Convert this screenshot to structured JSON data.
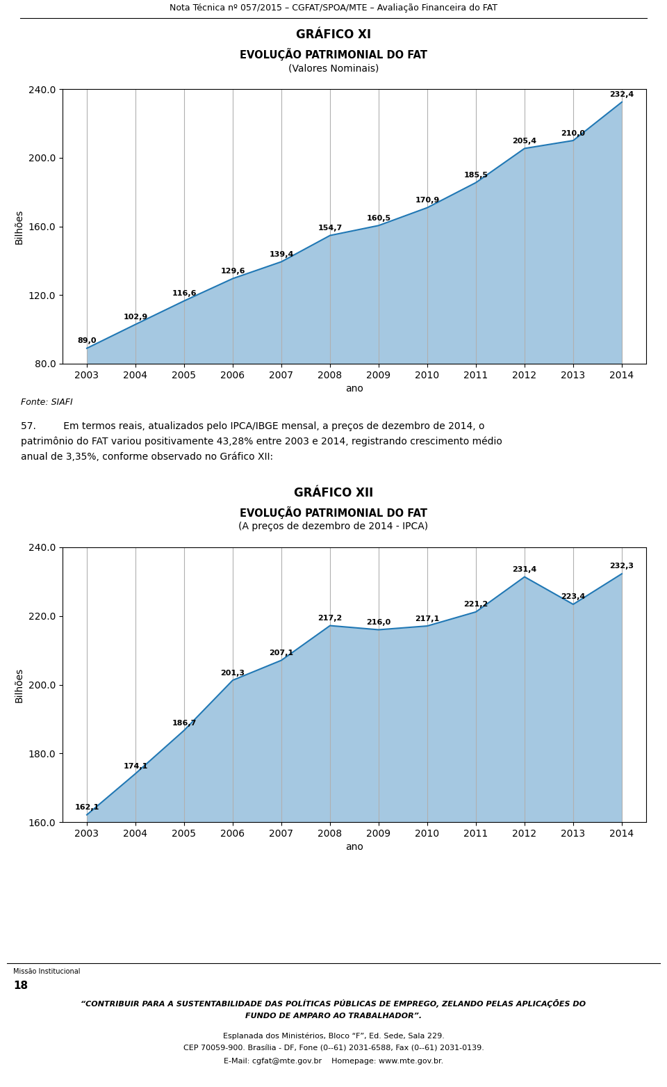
{
  "page_title": "Nota Técnica nº 057/2015 – CGFAT/SPOA/MTE – Avaliação Financeira do FAT",
  "chart_data": [
    {
      "type": "area",
      "title": "GRÁFICO XI",
      "subtitle": [
        "EVOLUÇÃO PATRIMONIAL DO FAT",
        "(Valores Nominais)"
      ],
      "ylabel": "Bilhões",
      "xlabel": "ano",
      "x": [
        2003,
        2004,
        2005,
        2006,
        2007,
        2008,
        2009,
        2010,
        2011,
        2012,
        2013,
        2014
      ],
      "values": [
        89.0,
        102.9,
        116.6,
        129.6,
        139.4,
        154.7,
        160.5,
        170.9,
        185.5,
        205.4,
        210.0,
        232.4
      ],
      "value_labels": [
        "89,0",
        "102,9",
        "116,6",
        "129,6",
        "139,4",
        "154,7",
        "160,5",
        "170,9",
        "185,5",
        "205,4",
        "210,0",
        "232,4"
      ],
      "data_labels": true,
      "xlim": [
        2002.5,
        2014.5
      ],
      "xticks": [
        2003,
        2004,
        2005,
        2006,
        2007,
        2008,
        2009,
        2010,
        2011,
        2012,
        2013,
        2014
      ],
      "ylim": [
        80,
        240
      ],
      "yticks": [
        {
          "value": 80,
          "label": "80.0"
        },
        {
          "value": 120,
          "label": "120.0"
        },
        {
          "value": 160,
          "label": "160.0"
        },
        {
          "value": 200,
          "label": "200.0"
        },
        {
          "value": 240,
          "label": "240.0"
        }
      ],
      "grid": "x",
      "source": "Fonte: SIAFI"
    },
    {
      "type": "area",
      "title": "GRÁFICO XII",
      "subtitle": [
        "EVOLUÇÃO PATRIMONIAL DO FAT",
        "(A preços de dezembro de 2014 - IPCA)"
      ],
      "ylabel": "Bilhões",
      "xlabel": "ano",
      "x": [
        2003,
        2004,
        2005,
        2006,
        2007,
        2008,
        2009,
        2010,
        2011,
        2012,
        2013,
        2014
      ],
      "values": [
        162.1,
        174.1,
        186.7,
        201.3,
        207.1,
        217.2,
        216.0,
        217.1,
        221.2,
        231.4,
        223.4,
        232.3
      ],
      "value_labels": [
        "162,1",
        "174,1",
        "186,7",
        "201,3",
        "207,1",
        "217,2",
        "216,0",
        "217,1",
        "221,2",
        "231,4",
        "223,4",
        "232,3"
      ],
      "data_labels": true,
      "xlim": [
        2002.5,
        2014.5
      ],
      "xticks": [
        2003,
        2004,
        2005,
        2006,
        2007,
        2008,
        2009,
        2010,
        2011,
        2012,
        2013,
        2014
      ],
      "ylim": [
        160,
        240
      ],
      "yticks": [
        {
          "value": 160,
          "label": "160.0"
        },
        {
          "value": 180,
          "label": "180.0"
        },
        {
          "value": 200,
          "label": "200.0"
        },
        {
          "value": 220,
          "label": "220.0"
        },
        {
          "value": 240,
          "label": "240.0"
        }
      ],
      "grid": "x"
    }
  ],
  "paragraph": [
    "57.         Em termos reais, atualizados pelo IPCA/IBGE mensal, a preços de dezembro de 2014, o",
    "patrimônio do FAT variou positivamente 43,28% entre 2003 e 2014, registrando crescimento médio",
    "anual de 3,35%, conforme observado no Gráfico XII:"
  ],
  "footer_small": "Missão Institucional",
  "footer_number": "18",
  "footer_bold": [
    "“CONTRIBUIR PARA A SUSTENTABILIDADE DAS POLÍTICAS PÚBLICAS DE EMPREGO, ZELANDO PELAS APLICAÇÕES DO",
    "FUNDO DE AMPARO AO TRABALHADOR”."
  ],
  "footer_lines": [
    "Esplanada dos Ministérios, Bloco “F”, Ed. Sede, Sala 229.",
    "CEP 70059-900. Brasília - DF, Fone (0--61) 2031-6588, Fax (0--61) 2031-0139.",
    "E-Mail: cgfat@mte.gov.br    Homepage: www.mte.gov.br."
  ]
}
